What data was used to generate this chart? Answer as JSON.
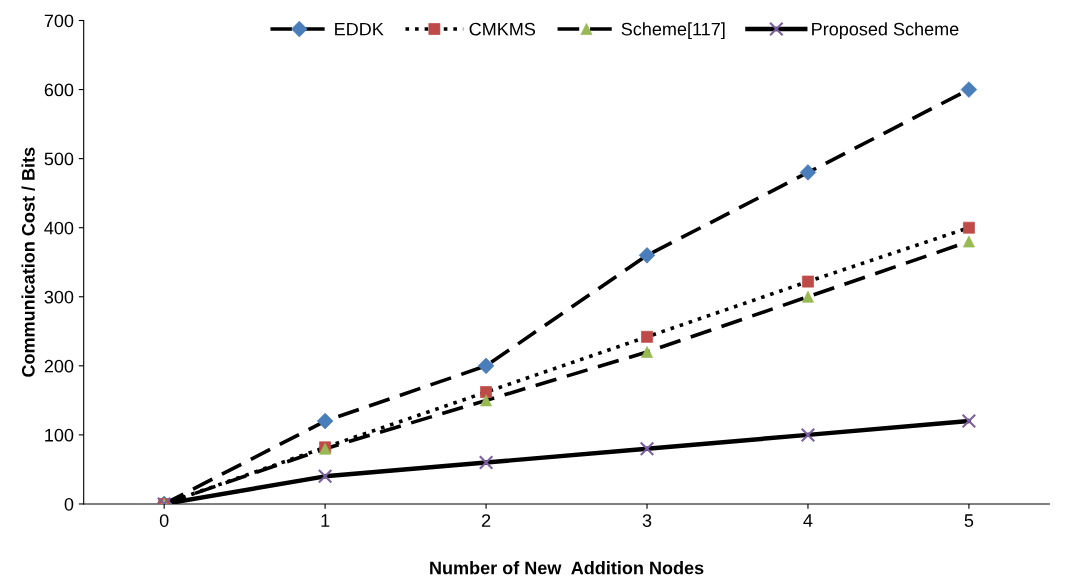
{
  "chart_data": {
    "type": "line",
    "xlabel": "Number of New  Addition Nodes",
    "ylabel": "Communication Cost / Bits",
    "categories": [
      "0",
      "1",
      "2",
      "3",
      "4",
      "5"
    ],
    "series": [
      {
        "name": "EDDK",
        "color": "#000000",
        "colors": [
          "#4a7ebb",
          "#4a7ebb",
          "#4a7ebb",
          "#4a7ebb",
          "#4a7ebb",
          "#4a7ebb"
        ],
        "marker": "diamond",
        "line_style": "dashed",
        "values": [
          0,
          120,
          200,
          360,
          480,
          600
        ]
      },
      {
        "name": "CMKMS",
        "color": "#000000",
        "colors": [
          "#be4b48",
          "#be4b48",
          "#be4b48",
          "#be4b48",
          "#be4b48",
          "#be4b48"
        ],
        "marker": "square",
        "line_style": "dotted",
        "values": [
          0,
          82,
          162,
          242,
          322,
          400
        ]
      },
      {
        "name": "Scheme[117]",
        "color": "#000000",
        "colors": [
          "#98b954",
          "#98b954",
          "#98b954",
          "#98b954",
          "#98b954",
          "#98b954"
        ],
        "marker": "triangle",
        "line_style": "dashed",
        "values": [
          0,
          80,
          150,
          220,
          300,
          380
        ]
      },
      {
        "name": "Proposed Scheme",
        "color": "#000000",
        "colors": [
          "#7d60a0",
          "#7d60a0",
          "#7d60a0",
          "#7d60a0",
          "#7d60a0",
          "#7d60a0"
        ],
        "marker": "cross",
        "line_style": "solid",
        "values": [
          0,
          40,
          60,
          80,
          100,
          120
        ]
      }
    ],
    "ylim": [
      0,
      700
    ],
    "yticks": [
      0,
      100,
      200,
      300,
      400,
      500,
      600,
      700
    ],
    "grid": false,
    "legend": "top"
  }
}
